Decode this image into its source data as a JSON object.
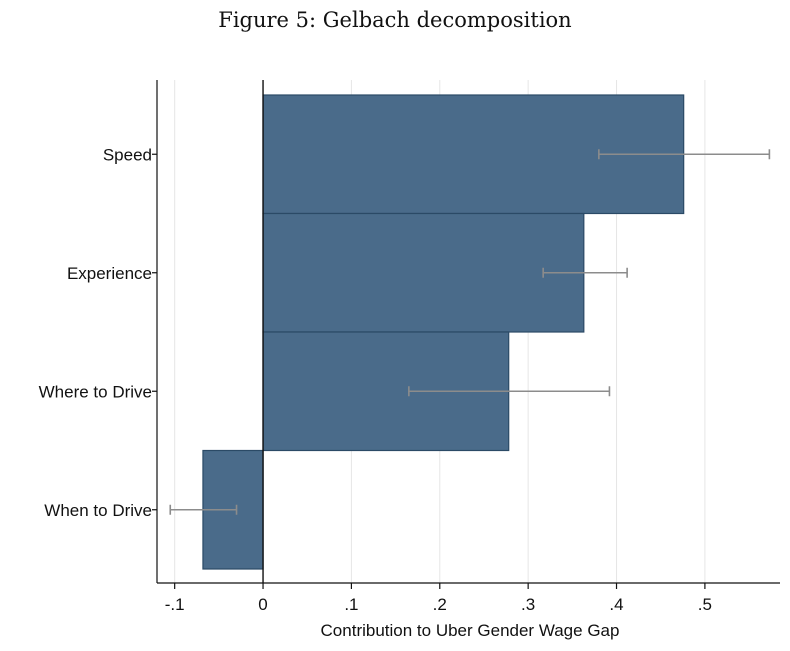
{
  "figure_title": "Figure 5: Gelbach decomposition",
  "chart_data": {
    "type": "bar",
    "orientation": "horizontal",
    "title": "Figure 5: Gelbach decomposition",
    "xlabel": "Contribution to Uber Gender Wage Gap",
    "ylabel": "",
    "categories": [
      "Speed",
      "Experience",
      "Where to Drive",
      "When to Drive"
    ],
    "values": [
      0.476,
      0.363,
      0.278,
      -0.068
    ],
    "ci_low": [
      0.38,
      0.317,
      0.165,
      -0.105
    ],
    "ci_high": [
      0.573,
      0.412,
      0.392,
      -0.03
    ],
    "xlim": [
      -0.12,
      0.585
    ],
    "xticks": [
      -0.1,
      0,
      0.1,
      0.2,
      0.3,
      0.4,
      0.5
    ],
    "xtick_labels": [
      "-.1",
      "0",
      ".1",
      ".2",
      ".3",
      ".4",
      ".5"
    ],
    "grid": true,
    "colors": {
      "bar": "#4a6b8a",
      "bar_edge": "#2b4a66",
      "error_bar": "#8c8c8c",
      "grid": "#e6e6e6",
      "axis": "#111111"
    }
  }
}
